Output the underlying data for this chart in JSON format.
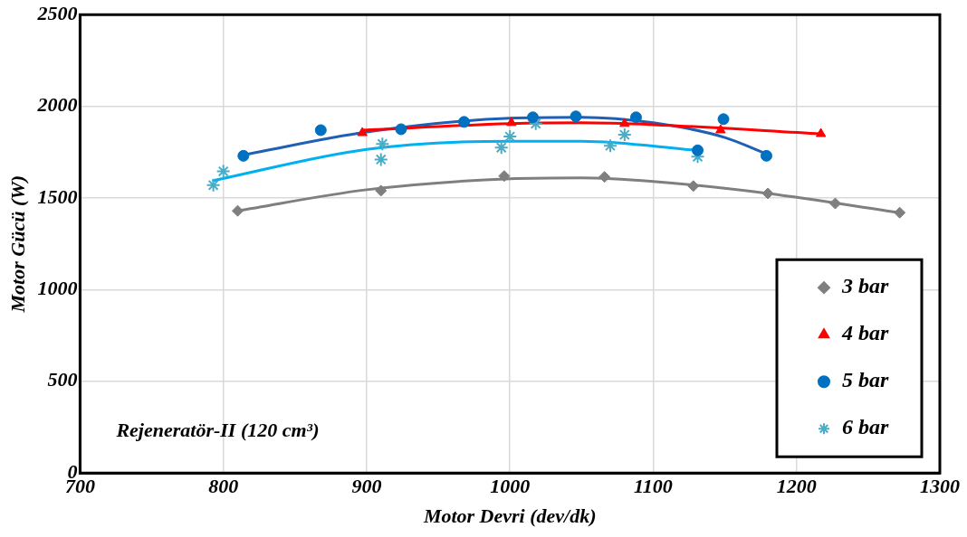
{
  "chart_data": {
    "type": "scatter",
    "xlabel": "Motor Devri (dev/dk)",
    "ylabel": "Motor Gücü (W)",
    "xlim": [
      700,
      1300
    ],
    "xticks": [
      700,
      800,
      900,
      1000,
      1100,
      1200,
      1300
    ],
    "ylim": [
      0,
      2500
    ],
    "yticks": [
      0,
      500,
      1000,
      1500,
      2000,
      2500
    ],
    "grid": true,
    "legend": "bottom right",
    "annotations": [
      "Rejeneratör-II (120 cm³)"
    ],
    "series": [
      {
        "name": "3 bar",
        "marker": "diamond",
        "color": "#7f7f7f",
        "x": [
          810,
          910,
          996,
          1066,
          1128,
          1180,
          1227,
          1272
        ],
        "values": [
          1430,
          1540,
          1620,
          1615,
          1565,
          1525,
          1470,
          1420
        ]
      },
      {
        "name": "4 bar",
        "marker": "triangle",
        "color": "#ff0000",
        "x": [
          897,
          1001,
          1080,
          1147,
          1217
        ],
        "values": [
          1855,
          1910,
          1905,
          1870,
          1850
        ]
      },
      {
        "name": "5 bar",
        "marker": "circle",
        "color": "#0070c0",
        "x": [
          814,
          868,
          924,
          968,
          1016,
          1046,
          1088,
          1131,
          1149,
          1179
        ],
        "values": [
          1730,
          1870,
          1875,
          1915,
          1940,
          1945,
          1940,
          1760,
          1930,
          1730
        ]
      },
      {
        "name": "6 bar",
        "marker": "cross",
        "color": "#4bacc6",
        "x": [
          793,
          800,
          910,
          911,
          994,
          1000,
          1018,
          1070,
          1080,
          1131
        ],
        "values": [
          1570,
          1645,
          1710,
          1795,
          1775,
          1835,
          1905,
          1785,
          1845,
          1725
        ]
      },
      {
        "type": "line",
        "marker": "none",
        "color": "#7f7f7f",
        "x": [
          810,
          900,
          1000,
          1050,
          1100,
          1180,
          1272
        ],
        "values": [
          1430,
          1545,
          1605,
          1610,
          1590,
          1525,
          1420
        ]
      },
      {
        "type": "line",
        "marker": "none",
        "color": "#ff0000",
        "x": [
          897,
          1000,
          1050,
          1100,
          1217
        ],
        "values": [
          1870,
          1905,
          1910,
          1900,
          1850
        ]
      },
      {
        "type": "line",
        "marker": "none",
        "color": "#1f5fb4",
        "x": [
          814,
          900,
          1000,
          1050,
          1100,
          1150,
          1179
        ],
        "values": [
          1735,
          1860,
          1935,
          1940,
          1910,
          1830,
          1740
        ]
      },
      {
        "type": "line",
        "marker": "none",
        "color": "#00b0f0",
        "x": [
          793,
          900,
          1000,
          1050,
          1131
        ],
        "values": [
          1595,
          1765,
          1810,
          1810,
          1760
        ]
      }
    ]
  }
}
